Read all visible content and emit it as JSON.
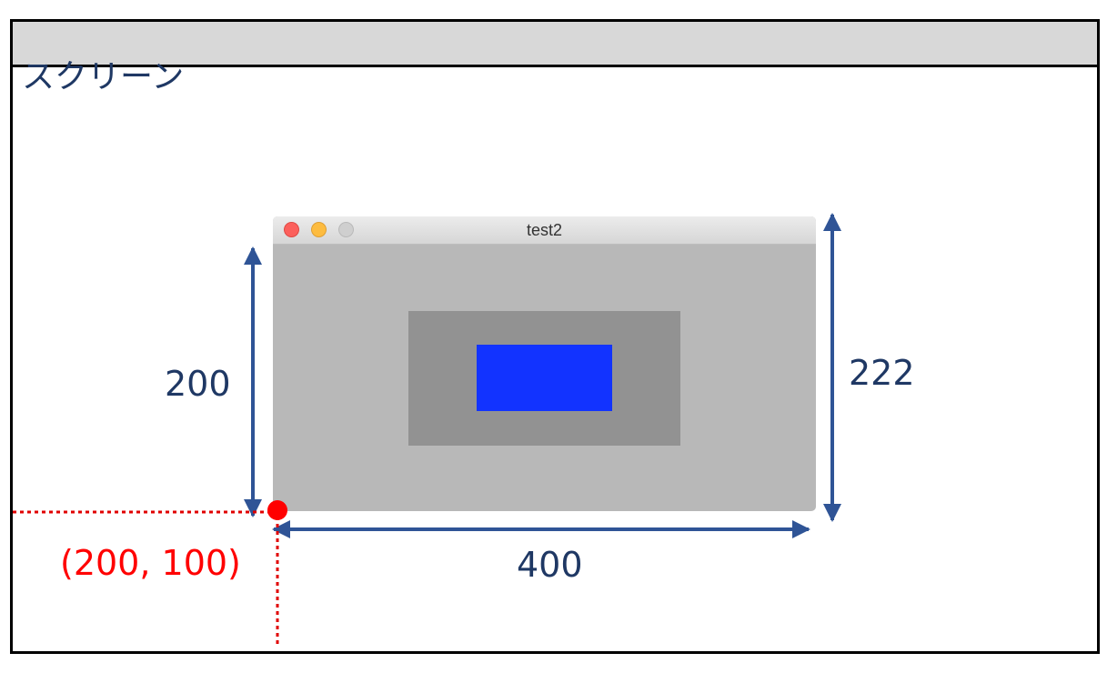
{
  "screen": {
    "label": "スクリーン"
  },
  "window": {
    "title": "test2",
    "controls": [
      "close",
      "minimize",
      "zoom"
    ]
  },
  "dimensions": {
    "content_height": "200",
    "window_height": "222",
    "width": "400"
  },
  "origin": {
    "coordinate_label": "(200, 100)"
  },
  "colors": {
    "annotation_text": "#1f3864",
    "arrow": "#2f5496",
    "origin_point": "#ff0000",
    "content_rect": "#1233ff",
    "window_body": "#b8b8b8",
    "inner_panel": "#929292"
  }
}
